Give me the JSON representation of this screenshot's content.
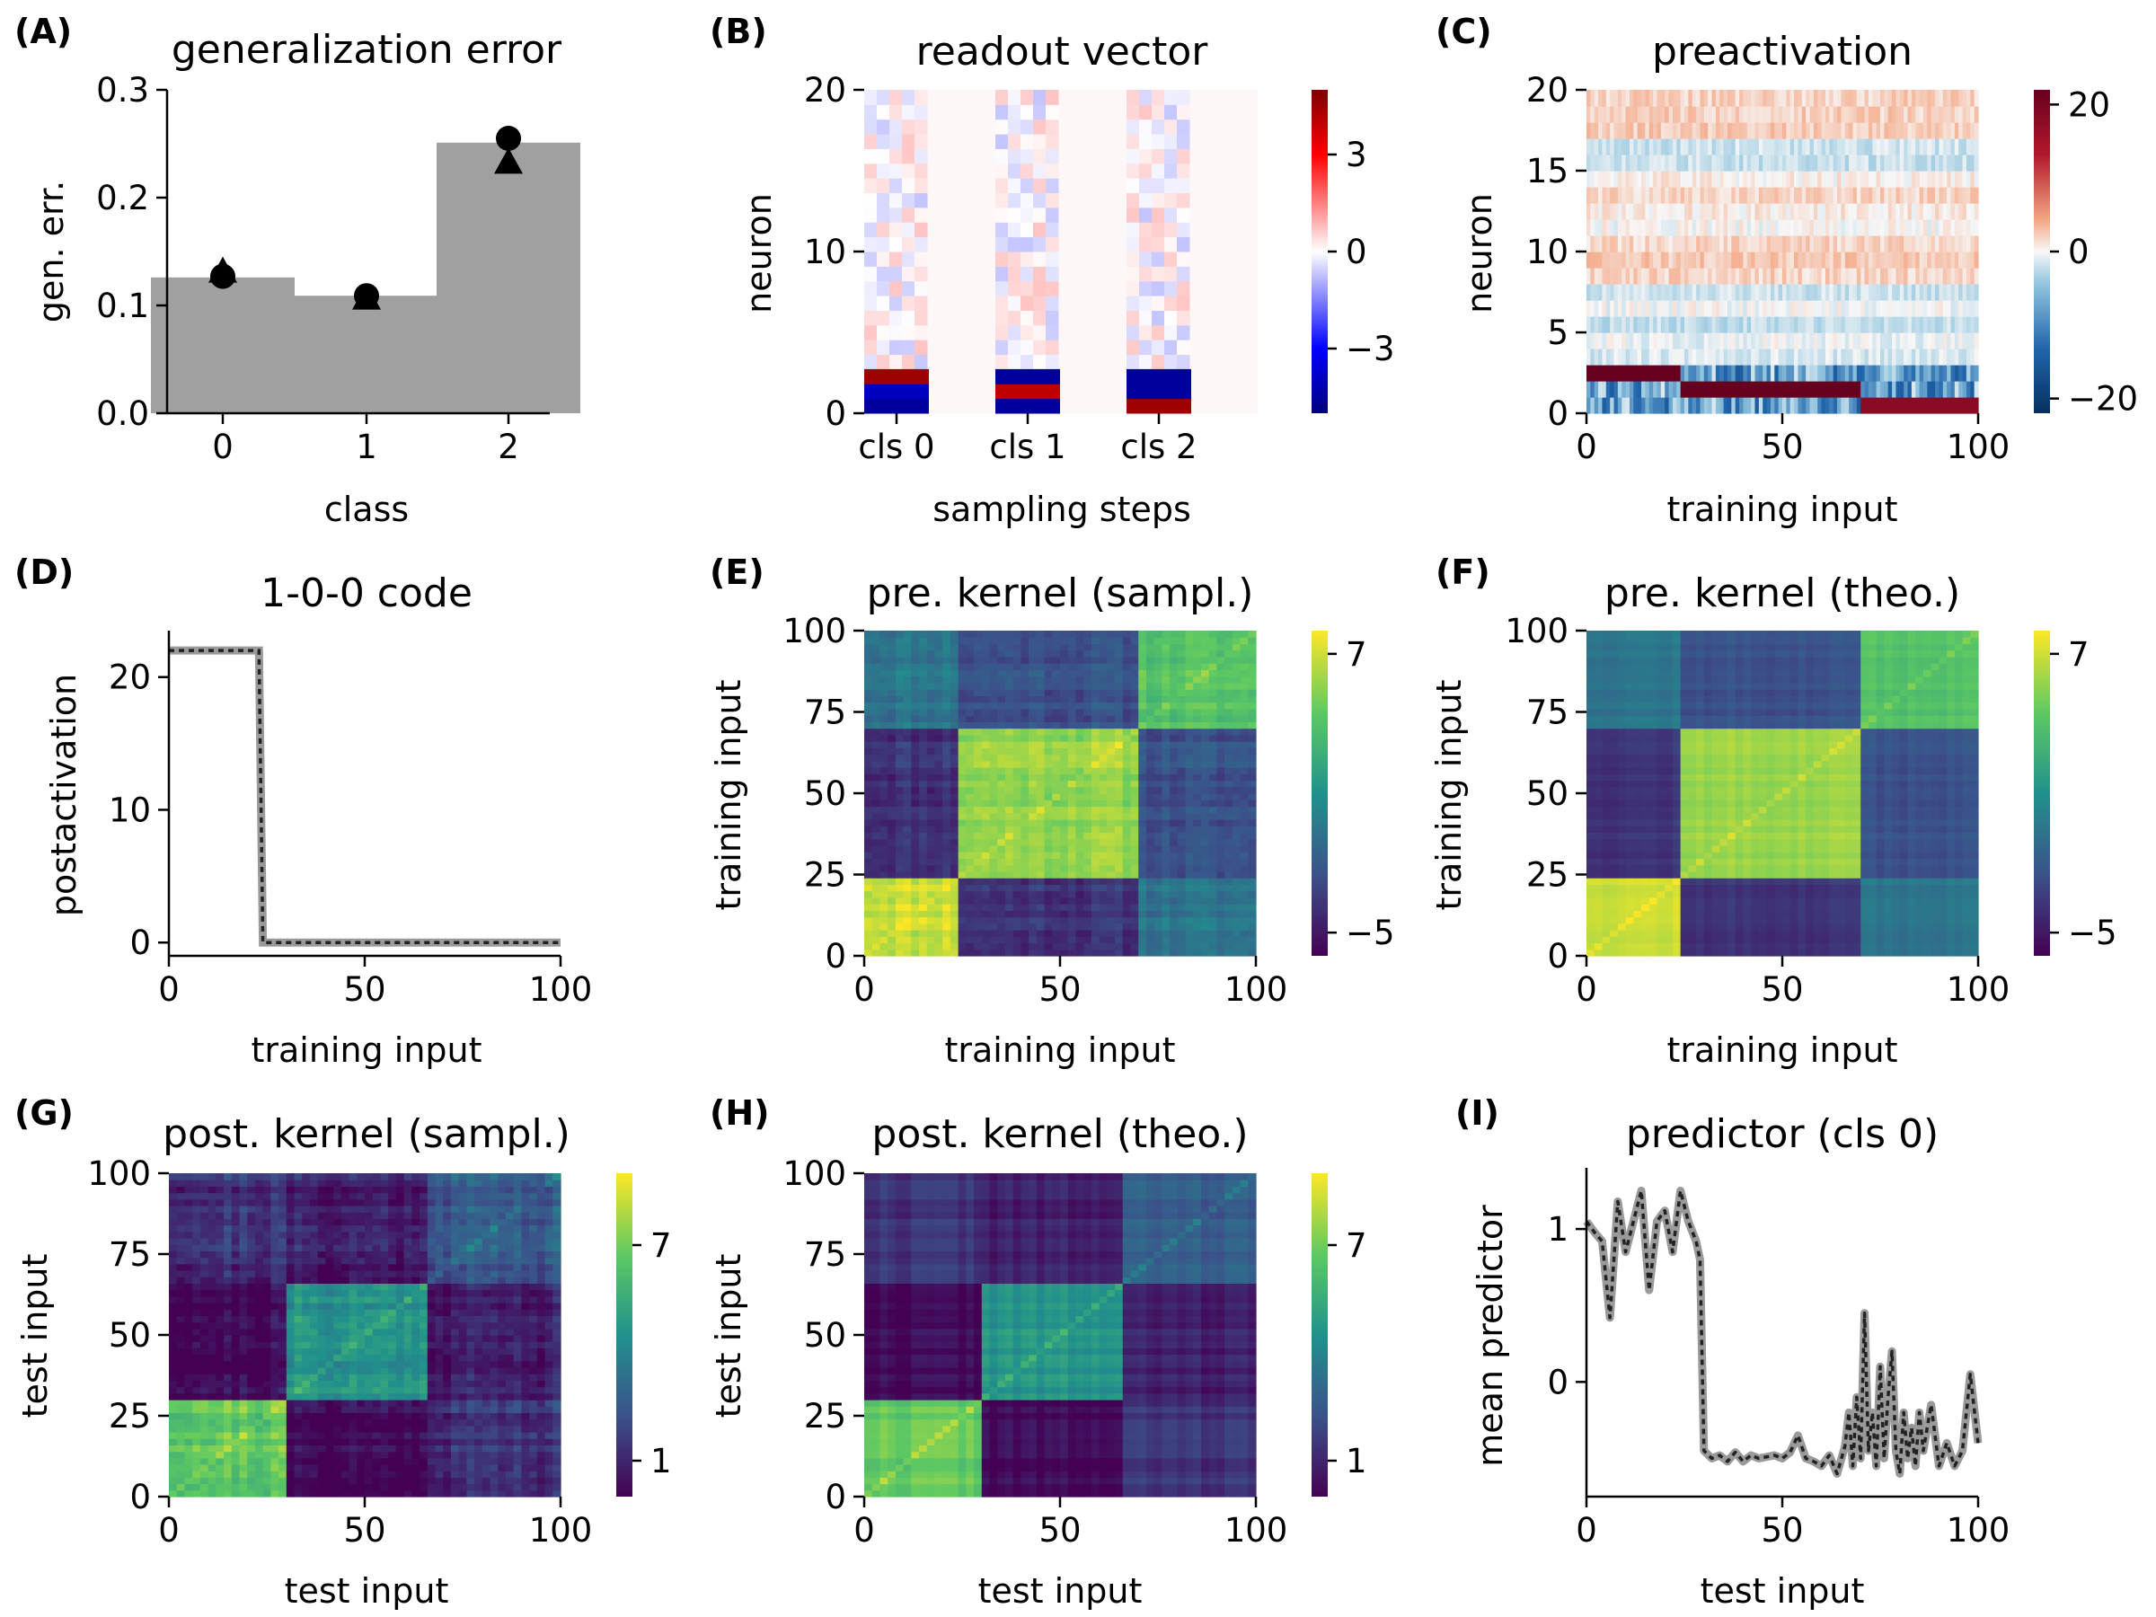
{
  "colors": {
    "bar": "#a0a0a0",
    "marker": "#000000",
    "rdbu_neg": "#053061",
    "rdbu_pos": "#67001f",
    "bwr_neg": "#00007f",
    "bwr_pos": "#7f0000",
    "viridis_low": "#440154",
    "viridis_high": "#fde725",
    "dash": "#9a9a9a"
  },
  "chart_data": [
    {
      "panel": "(A)",
      "type": "bar",
      "title": "generalization error",
      "xlabel": "class",
      "ylabel": "gen. err.",
      "categories": [
        "0",
        "1",
        "2"
      ],
      "values": [
        0.126,
        0.109,
        0.251
      ],
      "markers_circle": [
        0.127,
        0.109,
        0.255
      ],
      "markers_triangle": [
        0.132,
        0.107,
        0.233
      ],
      "ylim": [
        0,
        0.3
      ],
      "yticks": [
        "0.0",
        "0.1",
        "0.2",
        "0.3"
      ]
    },
    {
      "panel": "(B)",
      "type": "heatmap",
      "title": "readout vector",
      "xlabel": "sampling steps",
      "ylabel": "neuron",
      "xticks": [
        "cls 0",
        "cls 1",
        "cls 2"
      ],
      "yticks": [
        "0",
        "10",
        "20"
      ],
      "colorbar_ticks": [
        "−3",
        "0",
        "3"
      ],
      "vrange": [
        -5,
        5
      ],
      "groups": [
        {
          "name": "cls 0",
          "neuron0": -4.5,
          "neuron1": -4.0,
          "neuron2": 4.5
        },
        {
          "name": "cls 1",
          "neuron0": -4.5,
          "neuron1": 4.0,
          "neuron2": -4.5
        },
        {
          "name": "cls 2",
          "neuron0": 4.5,
          "neuron1": -4.5,
          "neuron2": -4.5
        }
      ]
    },
    {
      "panel": "(C)",
      "type": "heatmap",
      "title": "preactivation",
      "xlabel": "training input",
      "ylabel": "neuron",
      "xticks": [
        "0",
        "50",
        "100"
      ],
      "yticks": [
        "0",
        "5",
        "10",
        "15",
        "20"
      ],
      "colorbar_ticks": [
        "−20",
        "0",
        "20"
      ],
      "vrange": [
        -22,
        22
      ],
      "class_boundaries": [
        0,
        24,
        70,
        100
      ],
      "class_neuron_value": [
        22,
        22,
        18
      ]
    },
    {
      "panel": "(D)",
      "type": "line",
      "title": "1-0-0 code",
      "xlabel": "training input",
      "ylabel": "postactivation",
      "x": [
        0,
        23,
        24,
        100
      ],
      "y": [
        22,
        22,
        0,
        0
      ],
      "xlim": [
        0,
        100
      ],
      "ylim": [
        -1,
        23.5
      ],
      "xticks": [
        "0",
        "50",
        "100"
      ],
      "yticks": [
        "0",
        "10",
        "20"
      ]
    },
    {
      "panel": "(E)",
      "type": "heatmap",
      "title": "pre. kernel (sampl.)",
      "xlabel": "training input",
      "ylabel": "training input",
      "xticks": [
        "0",
        "50",
        "100"
      ],
      "yticks": [
        "0",
        "25",
        "50",
        "75",
        "100"
      ],
      "colorbar_ticks": [
        "−5",
        "7"
      ],
      "vrange": [
        -6,
        8
      ],
      "boundaries": [
        0,
        24,
        70,
        100
      ],
      "block_values": [
        [
          7.0,
          -3.8,
          -0.5
        ],
        [
          -3.8,
          5.8,
          -2.5
        ],
        [
          -0.5,
          -2.5,
          4.0
        ]
      ]
    },
    {
      "panel": "(F)",
      "type": "heatmap",
      "title": "pre. kernel (theo.)",
      "xlabel": "training input",
      "ylabel": "training input",
      "xticks": [
        "0",
        "50",
        "100"
      ],
      "yticks": [
        "0",
        "25",
        "50",
        "75",
        "100"
      ],
      "colorbar_ticks": [
        "−5",
        "7"
      ],
      "vrange": [
        -6,
        8
      ],
      "boundaries": [
        0,
        24,
        70,
        100
      ],
      "block_values": [
        [
          7.0,
          -3.8,
          -0.5
        ],
        [
          -3.8,
          5.8,
          -2.5
        ],
        [
          -0.5,
          -2.5,
          4.0
        ]
      ]
    },
    {
      "panel": "(G)",
      "type": "heatmap",
      "title": "post. kernel (sampl.)",
      "xlabel": "test input",
      "ylabel": "test input",
      "xticks": [
        "0",
        "50",
        "100"
      ],
      "yticks": [
        "0",
        "25",
        "50",
        "75",
        "100"
      ],
      "colorbar_ticks": [
        "1",
        "7"
      ],
      "vrange": [
        0,
        9
      ],
      "boundaries": [
        0,
        30,
        66,
        100
      ],
      "block_values": [
        [
          6.8,
          0.2,
          1.4
        ],
        [
          0.2,
          4.6,
          0.8
        ],
        [
          1.4,
          0.8,
          2.6
        ]
      ]
    },
    {
      "panel": "(H)",
      "type": "heatmap",
      "title": "post. kernel (theo.)",
      "xlabel": "test input",
      "ylabel": "test input",
      "xticks": [
        "0",
        "50",
        "100"
      ],
      "yticks": [
        "0",
        "25",
        "50",
        "75",
        "100"
      ],
      "colorbar_ticks": [
        "1",
        "7"
      ],
      "vrange": [
        0,
        9
      ],
      "boundaries": [
        0,
        30,
        66,
        100
      ],
      "block_values": [
        [
          6.8,
          0.2,
          1.4
        ],
        [
          0.2,
          4.6,
          0.8
        ],
        [
          1.4,
          0.8,
          2.6
        ]
      ]
    },
    {
      "panel": "(I)",
      "type": "line",
      "title": "predictor (cls 0)",
      "xlabel": "test input",
      "ylabel": "mean predictor",
      "x": [
        0,
        2,
        4,
        6,
        8,
        10,
        12,
        14,
        16,
        18,
        20,
        22,
        24,
        26,
        28,
        29,
        30,
        32,
        34,
        36,
        38,
        40,
        42,
        44,
        46,
        48,
        50,
        52,
        54,
        56,
        58,
        60,
        62,
        64,
        66,
        67,
        68,
        69,
        70,
        71,
        72,
        73,
        74,
        75,
        76,
        77,
        78,
        79,
        80,
        81,
        82,
        83,
        84,
        85,
        86,
        88,
        90,
        92,
        94,
        96,
        98,
        100
      ],
      "y": [
        1.05,
        0.98,
        0.92,
        0.42,
        1.18,
        0.85,
        1.05,
        1.25,
        0.6,
        1.05,
        1.12,
        0.85,
        1.25,
        1.05,
        0.92,
        0.8,
        -0.45,
        -0.5,
        -0.48,
        -0.52,
        -0.46,
        -0.52,
        -0.48,
        -0.5,
        -0.49,
        -0.48,
        -0.5,
        -0.46,
        -0.35,
        -0.5,
        -0.52,
        -0.55,
        -0.48,
        -0.6,
        -0.42,
        -0.2,
        -0.55,
        -0.1,
        -0.5,
        0.45,
        -0.45,
        -0.2,
        -0.55,
        0.1,
        -0.5,
        -0.1,
        0.2,
        -0.45,
        -0.6,
        -0.2,
        -0.5,
        -0.3,
        -0.55,
        -0.2,
        -0.45,
        -0.15,
        -0.55,
        -0.4,
        -0.55,
        -0.45,
        0.05,
        -0.4
      ],
      "xlim": [
        0,
        100
      ],
      "ylim": [
        -0.75,
        1.4
      ],
      "xticks": [
        "0",
        "50",
        "100"
      ],
      "yticks": [
        "0",
        "1"
      ]
    }
  ]
}
